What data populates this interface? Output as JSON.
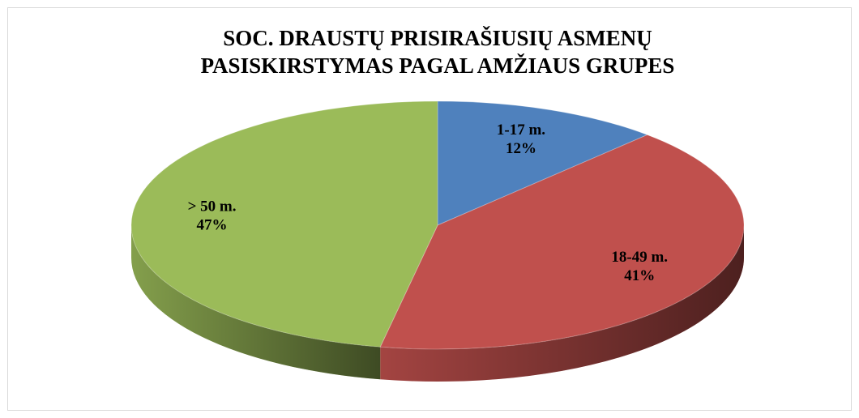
{
  "chart_data": {
    "type": "pie",
    "title": [
      "SOC. DRAUSTŲ PRISIRAŠIUSIŲ ASMENŲ",
      "PASISKIRSTYMAS PAGAL AMŽIAUS GRUPES"
    ],
    "categories": [
      "1-17 m.",
      "18-49 m.",
      "> 50 m."
    ],
    "values": [
      12,
      41,
      47
    ],
    "value_labels": [
      "12%",
      "41%",
      "47%"
    ],
    "colors": [
      "#4f81bd",
      "#c0504d",
      "#9bbb59"
    ]
  }
}
